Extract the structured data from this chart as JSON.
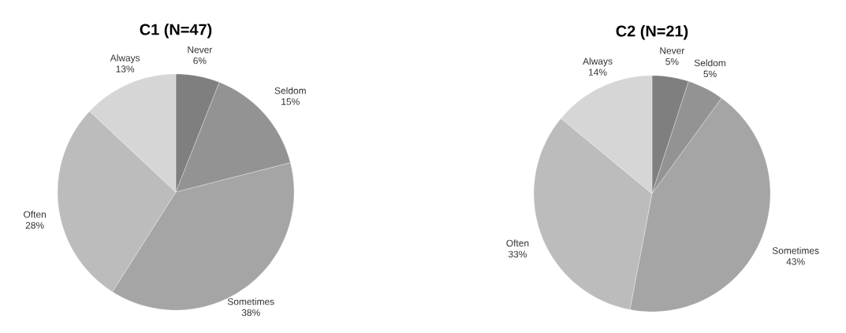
{
  "chart_data": [
    {
      "type": "pie",
      "title": "C1 (N=47)",
      "categories": [
        "Never",
        "Seldom",
        "Sometimes",
        "Often",
        "Always"
      ],
      "values": [
        6,
        15,
        38,
        28,
        13
      ],
      "value_labels": [
        "6%",
        "15%",
        "38%",
        "28%",
        "13%"
      ],
      "colors": [
        "#7f7f7f",
        "#939393",
        "#a5a5a5",
        "#bcbcbc",
        "#d6d6d6"
      ]
    },
    {
      "type": "pie",
      "title": "C2 (N=21)",
      "categories": [
        "Never",
        "Seldom",
        "Sometimes",
        "Often",
        "Always"
      ],
      "values": [
        5,
        5,
        43,
        33,
        14
      ],
      "value_labels": [
        "5%",
        "5%",
        "43%",
        "33%",
        "14%"
      ],
      "colors": [
        "#7f7f7f",
        "#939393",
        "#a5a5a5",
        "#bcbcbc",
        "#d6d6d6"
      ]
    }
  ]
}
